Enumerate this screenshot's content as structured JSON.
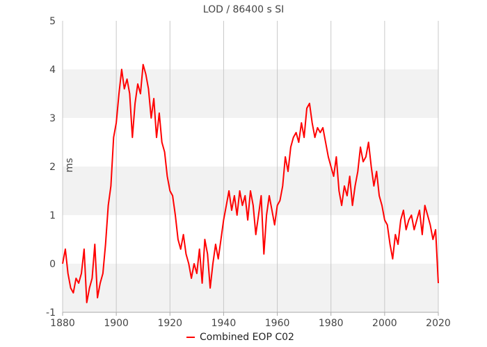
{
  "chart_data": {
    "type": "line",
    "title": "LOD / 86400 s SI",
    "ylabel": "ms",
    "xlabel": "",
    "xlim": [
      1880,
      2020
    ],
    "ylim": [
      -1,
      5
    ],
    "x_ticks": [
      "1880",
      "1900",
      "1920",
      "1940",
      "1960",
      "1980",
      "2000",
      "2020"
    ],
    "y_ticks": [
      "-1",
      "0",
      "1",
      "2",
      "3",
      "4",
      "5"
    ],
    "grid": true,
    "band_color": "#f2f2f2",
    "legend_position": "bottom",
    "series": [
      {
        "name": "Combined EOP C02",
        "color": "#ff0000",
        "points": [
          [
            1880,
            0.0
          ],
          [
            1881,
            0.3
          ],
          [
            1882,
            -0.2
          ],
          [
            1883,
            -0.5
          ],
          [
            1884,
            -0.6
          ],
          [
            1885,
            -0.3
          ],
          [
            1886,
            -0.4
          ],
          [
            1887,
            -0.2
          ],
          [
            1888,
            0.3
          ],
          [
            1889,
            -0.8
          ],
          [
            1890,
            -0.5
          ],
          [
            1891,
            -0.3
          ],
          [
            1892,
            0.4
          ],
          [
            1893,
            -0.7
          ],
          [
            1894,
            -0.4
          ],
          [
            1895,
            -0.2
          ],
          [
            1896,
            0.4
          ],
          [
            1897,
            1.2
          ],
          [
            1898,
            1.6
          ],
          [
            1899,
            2.6
          ],
          [
            1900,
            2.9
          ],
          [
            1901,
            3.5
          ],
          [
            1902,
            4.0
          ],
          [
            1903,
            3.6
          ],
          [
            1904,
            3.8
          ],
          [
            1905,
            3.5
          ],
          [
            1906,
            2.6
          ],
          [
            1907,
            3.3
          ],
          [
            1908,
            3.7
          ],
          [
            1909,
            3.5
          ],
          [
            1910,
            4.1
          ],
          [
            1911,
            3.9
          ],
          [
            1912,
            3.6
          ],
          [
            1913,
            3.0
          ],
          [
            1914,
            3.4
          ],
          [
            1915,
            2.6
          ],
          [
            1916,
            3.1
          ],
          [
            1917,
            2.5
          ],
          [
            1918,
            2.3
          ],
          [
            1919,
            1.8
          ],
          [
            1920,
            1.5
          ],
          [
            1921,
            1.4
          ],
          [
            1922,
            1.0
          ],
          [
            1923,
            0.5
          ],
          [
            1924,
            0.3
          ],
          [
            1925,
            0.6
          ],
          [
            1926,
            0.2
          ],
          [
            1927,
            0.0
          ],
          [
            1928,
            -0.3
          ],
          [
            1929,
            0.0
          ],
          [
            1930,
            -0.2
          ],
          [
            1931,
            0.3
          ],
          [
            1932,
            -0.4
          ],
          [
            1933,
            0.5
          ],
          [
            1934,
            0.2
          ],
          [
            1935,
            -0.5
          ],
          [
            1936,
            0.0
          ],
          [
            1937,
            0.4
          ],
          [
            1938,
            0.1
          ],
          [
            1939,
            0.5
          ],
          [
            1940,
            0.9
          ],
          [
            1941,
            1.2
          ],
          [
            1942,
            1.5
          ],
          [
            1943,
            1.1
          ],
          [
            1944,
            1.4
          ],
          [
            1945,
            1.0
          ],
          [
            1946,
            1.5
          ],
          [
            1947,
            1.2
          ],
          [
            1948,
            1.4
          ],
          [
            1949,
            0.9
          ],
          [
            1950,
            1.5
          ],
          [
            1951,
            1.2
          ],
          [
            1952,
            0.6
          ],
          [
            1953,
            1.0
          ],
          [
            1954,
            1.4
          ],
          [
            1955,
            0.2
          ],
          [
            1956,
            1.0
          ],
          [
            1957,
            1.4
          ],
          [
            1958,
            1.1
          ],
          [
            1959,
            0.8
          ],
          [
            1960,
            1.2
          ],
          [
            1961,
            1.3
          ],
          [
            1962,
            1.6
          ],
          [
            1963,
            2.2
          ],
          [
            1964,
            1.9
          ],
          [
            1965,
            2.4
          ],
          [
            1966,
            2.6
          ],
          [
            1967,
            2.7
          ],
          [
            1968,
            2.5
          ],
          [
            1969,
            2.9
          ],
          [
            1970,
            2.6
          ],
          [
            1971,
            3.2
          ],
          [
            1972,
            3.3
          ],
          [
            1973,
            2.9
          ],
          [
            1974,
            2.6
          ],
          [
            1975,
            2.8
          ],
          [
            1976,
            2.7
          ],
          [
            1977,
            2.8
          ],
          [
            1978,
            2.5
          ],
          [
            1979,
            2.2
          ],
          [
            1980,
            2.0
          ],
          [
            1981,
            1.8
          ],
          [
            1982,
            2.2
          ],
          [
            1983,
            1.5
          ],
          [
            1984,
            1.2
          ],
          [
            1985,
            1.6
          ],
          [
            1986,
            1.4
          ],
          [
            1987,
            1.8
          ],
          [
            1988,
            1.2
          ],
          [
            1989,
            1.6
          ],
          [
            1990,
            1.9
          ],
          [
            1991,
            2.4
          ],
          [
            1992,
            2.1
          ],
          [
            1993,
            2.2
          ],
          [
            1994,
            2.5
          ],
          [
            1995,
            2.0
          ],
          [
            1996,
            1.6
          ],
          [
            1997,
            1.9
          ],
          [
            1998,
            1.4
          ],
          [
            1999,
            1.2
          ],
          [
            2000,
            0.9
          ],
          [
            2001,
            0.8
          ],
          [
            2002,
            0.4
          ],
          [
            2003,
            0.1
          ],
          [
            2004,
            0.6
          ],
          [
            2005,
            0.4
          ],
          [
            2006,
            0.9
          ],
          [
            2007,
            1.1
          ],
          [
            2008,
            0.7
          ],
          [
            2009,
            0.9
          ],
          [
            2010,
            1.0
          ],
          [
            2011,
            0.7
          ],
          [
            2012,
            0.9
          ],
          [
            2013,
            1.1
          ],
          [
            2014,
            0.6
          ],
          [
            2015,
            1.2
          ],
          [
            2016,
            1.0
          ],
          [
            2017,
            0.8
          ],
          [
            2018,
            0.5
          ],
          [
            2019,
            0.7
          ],
          [
            2020,
            -0.4
          ]
        ]
      }
    ]
  }
}
